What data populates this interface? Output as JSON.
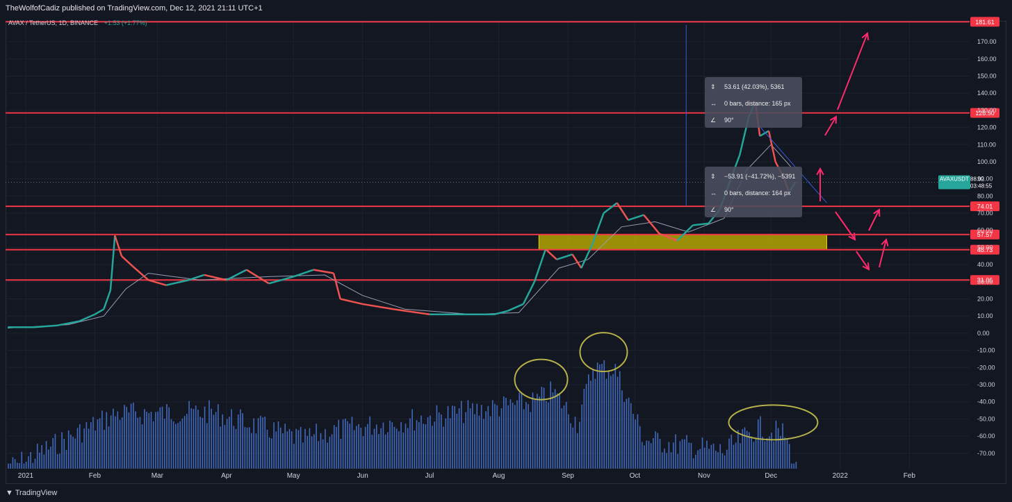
{
  "header": {
    "publisher": "TheWolfofCadiz published on TradingView.com, Dec 12, 2021 21:11 UTC+1"
  },
  "symbol": {
    "label": "AVAX / TetherUS, 1D, BINANCE",
    "change": "+1.53 (+1.77%)"
  },
  "footer": {
    "brand": "TradingView"
  },
  "colors": {
    "background": "#131722",
    "grid": "#1e222d",
    "level_line": "#f23645",
    "up": "#26a69a",
    "down": "#ef5350",
    "volume": "#4a78d8",
    "zone": "#c9b800",
    "arrow": "#ff2a6d",
    "ellipse": "#b8b24a"
  },
  "chart_data": {
    "type": "line",
    "title": "AVAX / TetherUS, 1D, BINANCE",
    "y_ticks": [
      170,
      160,
      150,
      140,
      130,
      120,
      110,
      100,
      90,
      80,
      70,
      60,
      50,
      40,
      30,
      20,
      10,
      0,
      -10,
      -20,
      -30,
      -40,
      -50,
      -60,
      -70
    ],
    "y_tick_labels": [
      "170.00",
      "160.00",
      "150.00",
      "140.00",
      "130.00",
      "120.00",
      "110.00",
      "100.00",
      "90.00",
      "80.00",
      "70.00",
      "60.00",
      "50.00",
      "40.00",
      "30.00",
      "20.00",
      "10.00",
      "0.00",
      "-10.00",
      "-20.00",
      "-30.00",
      "-40.00",
      "-50.00",
      "-60.00",
      "-70.00"
    ],
    "ylim": [
      -79,
      183
    ],
    "x_ticks": [
      "2021",
      "Feb",
      "Mar",
      "Apr",
      "May",
      "Jun",
      "Jul",
      "Aug",
      "Sep",
      "Oct",
      "Nov",
      "Dec",
      "2022",
      "Feb"
    ],
    "x_tick_dates": [
      "2021-01-01",
      "2021-02-01",
      "2021-03-01",
      "2021-04-01",
      "2021-05-01",
      "2021-06-01",
      "2021-07-01",
      "2021-08-01",
      "2021-09-01",
      "2021-10-01",
      "2021-11-01",
      "2021-12-01",
      "2022-01-01",
      "2022-02-01"
    ],
    "xlim": [
      "2020-12-23",
      "2022-02-28"
    ],
    "price_series": {
      "name": "AVAXUSDT",
      "points": [
        [
          "2020-12-24",
          3.5
        ],
        [
          "2021-01-05",
          3.5
        ],
        [
          "2021-01-15",
          4.5
        ],
        [
          "2021-01-25",
          7
        ],
        [
          "2021-02-01",
          11
        ],
        [
          "2021-02-05",
          14
        ],
        [
          "2021-02-08",
          25
        ],
        [
          "2021-02-10",
          57
        ],
        [
          "2021-02-13",
          45
        ],
        [
          "2021-02-18",
          39
        ],
        [
          "2021-02-25",
          31
        ],
        [
          "2021-03-05",
          28
        ],
        [
          "2021-03-15",
          31
        ],
        [
          "2021-03-22",
          34
        ],
        [
          "2021-04-01",
          31
        ],
        [
          "2021-04-10",
          37
        ],
        [
          "2021-04-20",
          29
        ],
        [
          "2021-05-01",
          33
        ],
        [
          "2021-05-10",
          37
        ],
        [
          "2021-05-19",
          35
        ],
        [
          "2021-05-22",
          20
        ],
        [
          "2021-06-01",
          17
        ],
        [
          "2021-06-15",
          14
        ],
        [
          "2021-07-01",
          11
        ],
        [
          "2021-07-15",
          11
        ],
        [
          "2021-07-30",
          11
        ],
        [
          "2021-08-05",
          13
        ],
        [
          "2021-08-12",
          17
        ],
        [
          "2021-08-17",
          30
        ],
        [
          "2021-08-22",
          49
        ],
        [
          "2021-08-27",
          43
        ],
        [
          "2021-09-03",
          46
        ],
        [
          "2021-09-07",
          38
        ],
        [
          "2021-09-12",
          52
        ],
        [
          "2021-09-17",
          70
        ],
        [
          "2021-09-23",
          76
        ],
        [
          "2021-09-28",
          66
        ],
        [
          "2021-10-05",
          69
        ],
        [
          "2021-10-12",
          58
        ],
        [
          "2021-10-20",
          54
        ],
        [
          "2021-10-27",
          63
        ],
        [
          "2021-11-03",
          64
        ],
        [
          "2021-11-08",
          72
        ],
        [
          "2021-11-13",
          90
        ],
        [
          "2021-11-17",
          104
        ],
        [
          "2021-11-21",
          126
        ],
        [
          "2021-11-24",
          135
        ],
        [
          "2021-11-26",
          115
        ],
        [
          "2021-11-30",
          118
        ],
        [
          "2021-12-03",
          100
        ],
        [
          "2021-12-07",
          90
        ],
        [
          "2021-12-09",
          82
        ],
        [
          "2021-12-12",
          88
        ]
      ]
    },
    "ma_series": {
      "points": [
        [
          "2020-12-24",
          3
        ],
        [
          "2021-01-20",
          5
        ],
        [
          "2021-02-05",
          10
        ],
        [
          "2021-02-15",
          26
        ],
        [
          "2021-02-25",
          35
        ],
        [
          "2021-03-20",
          31
        ],
        [
          "2021-04-20",
          33
        ],
        [
          "2021-05-15",
          34
        ],
        [
          "2021-06-01",
          22
        ],
        [
          "2021-06-20",
          14
        ],
        [
          "2021-07-20",
          11
        ],
        [
          "2021-08-10",
          12
        ],
        [
          "2021-08-28",
          38
        ],
        [
          "2021-09-10",
          43
        ],
        [
          "2021-09-25",
          62
        ],
        [
          "2021-10-10",
          65
        ],
        [
          "2021-10-25",
          59
        ],
        [
          "2021-11-10",
          67
        ],
        [
          "2021-11-20",
          95
        ],
        [
          "2021-12-01",
          110
        ],
        [
          "2021-12-10",
          97
        ]
      ]
    },
    "volume_series": {
      "name": "Volume",
      "peaks": [
        [
          "2020-12-24",
          -72
        ],
        [
          "2021-02-10",
          -40
        ],
        [
          "2021-03-25",
          -39
        ],
        [
          "2021-05-05",
          -55
        ],
        [
          "2021-05-18",
          -50
        ],
        [
          "2021-08-17",
          -33
        ],
        [
          "2021-08-25",
          -27
        ],
        [
          "2021-09-05",
          -45
        ],
        [
          "2021-09-12",
          -13
        ],
        [
          "2021-09-22",
          -14
        ],
        [
          "2021-10-05",
          -55
        ],
        [
          "2021-11-10",
          -62
        ],
        [
          "2021-11-25",
          -48
        ],
        [
          "2021-12-07",
          -52
        ],
        [
          "2021-12-12",
          -73
        ]
      ]
    },
    "levels": [
      {
        "value": 181.61,
        "label": "181.61"
      },
      {
        "value": 128.5,
        "label": "128.50"
      },
      {
        "value": 74.01,
        "label": "74.01"
      },
      {
        "value": 57.57,
        "label": "57.57"
      },
      {
        "value": 48.73,
        "label": "48.73"
      },
      {
        "value": 31.06,
        "label": "31.06"
      }
    ],
    "zone": {
      "from_date": "2021-08-19",
      "to_date": "2021-12-26",
      "low": 48.73,
      "high": 57.57
    },
    "current_price": {
      "label": "AVAXUSDT",
      "value": "88.02",
      "countdown": "03:48:55",
      "y": 88.02
    },
    "measure_boxes": [
      {
        "lines": [
          "53.61 (42.03%), 5361",
          "0 bars, distance: 165 px",
          "90°"
        ]
      },
      {
        "lines": [
          "−53.91 (−41.72%), −5391",
          "0 bars, distance: 164 px",
          "90°"
        ]
      }
    ],
    "grid": true
  }
}
